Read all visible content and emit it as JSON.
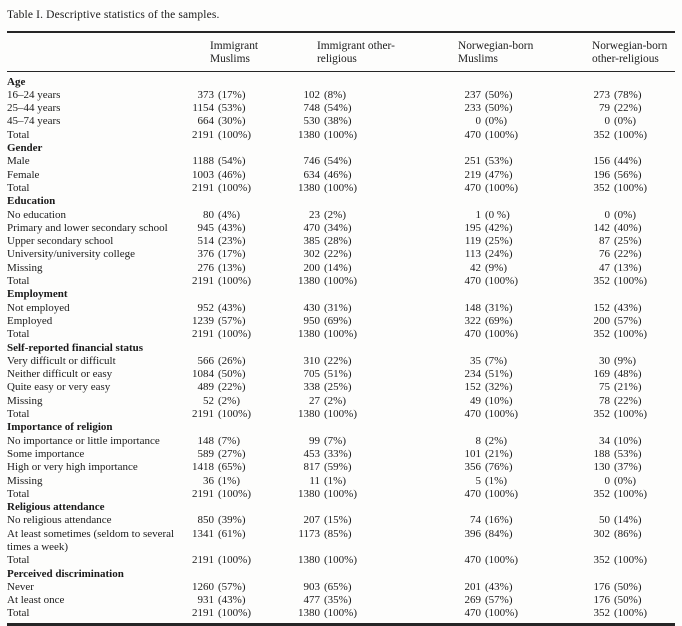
{
  "page": {
    "title": "Table I. Descriptive statistics of the samples."
  },
  "table": {
    "columns": [
      {
        "line1": "Immigrant",
        "line2": "Muslims"
      },
      {
        "line1": "Immigrant other-",
        "line2": "religious"
      },
      {
        "line1": "Norwegian-born",
        "line2": "Muslims"
      },
      {
        "line1": "Norwegian-born",
        "line2": "other-religious"
      }
    ],
    "sections": [
      {
        "header": "Age",
        "rows": [
          {
            "label": "16–24 years",
            "values": [
              "373 (17%)",
              "102 (8%)",
              "237 (50%)",
              "273 (78%)"
            ]
          },
          {
            "label": "25–44 years",
            "values": [
              "1154 (53%)",
              "748 (54%)",
              "233 (50%)",
              "79 (22%)"
            ]
          },
          {
            "label": "45–74 years",
            "values": [
              "664 (30%)",
              "530 (38%)",
              "0 (0%)",
              "0 (0%)"
            ]
          },
          {
            "label": "Total",
            "values": [
              "2191 (100%)",
              "1380 (100%)",
              "470 (100%)",
              "352 (100%)"
            ]
          }
        ]
      },
      {
        "header": "Gender",
        "rows": [
          {
            "label": "Male",
            "values": [
              "1188 (54%)",
              "746 (54%)",
              "251 (53%)",
              "156 (44%)"
            ]
          },
          {
            "label": "Female",
            "values": [
              "1003 (46%)",
              "634 (46%)",
              "219 (47%)",
              "196 (56%)"
            ]
          },
          {
            "label": "Total",
            "values": [
              "2191 (100%)",
              "1380 (100%)",
              "470 (100%)",
              "352 (100%)"
            ]
          }
        ]
      },
      {
        "header": "Education",
        "rows": [
          {
            "label": "No education",
            "values": [
              "80 (4%)",
              "23 (2%)",
              "1 (0 %)",
              "0 (0%)"
            ]
          },
          {
            "label": "Primary and lower secondary school",
            "values": [
              "945 (43%)",
              "470 (34%)",
              "195 (42%)",
              "142 (40%)"
            ]
          },
          {
            "label": "Upper secondary school",
            "values": [
              "514 (23%)",
              "385 (28%)",
              "119 (25%)",
              "87 (25%)"
            ]
          },
          {
            "label": "University/university college",
            "values": [
              "376 (17%)",
              "302 (22%)",
              "113 (24%)",
              "76 (22%)"
            ]
          },
          {
            "label": "Missing",
            "values": [
              "276 (13%)",
              "200 (14%)",
              "42 (9%)",
              "47 (13%)"
            ]
          },
          {
            "label": "Total",
            "values": [
              "2191 (100%)",
              "1380 (100%)",
              "470 (100%)",
              "352 (100%)"
            ]
          }
        ]
      },
      {
        "header": "Employment",
        "rows": [
          {
            "label": "Not employed",
            "values": [
              "952 (43%)",
              "430 (31%)",
              "148 (31%)",
              "152 (43%)"
            ]
          },
          {
            "label": "Employed",
            "values": [
              "1239 (57%)",
              "950 (69%)",
              "322 (69%)",
              "200 (57%)"
            ]
          },
          {
            "label": "Total",
            "values": [
              "2191 (100%)",
              "1380 (100%)",
              "470 (100%)",
              "352 (100%)"
            ]
          }
        ]
      },
      {
        "header": "Self-reported financial status",
        "rows": [
          {
            "label": "Very difficult or difficult",
            "values": [
              "566 (26%)",
              "310 (22%)",
              "35 (7%)",
              "30 (9%)"
            ]
          },
          {
            "label": "Neither difficult or easy",
            "values": [
              "1084 (50%)",
              "705 (51%)",
              "234 (51%)",
              "169 (48%)"
            ]
          },
          {
            "label": "Quite easy or very easy",
            "values": [
              "489 (22%)",
              "338 (25%)",
              "152 (32%)",
              "75 (21%)"
            ]
          },
          {
            "label": "Missing",
            "values": [
              "52 (2%)",
              "27 (2%)",
              "49 (10%)",
              "78 (22%)"
            ]
          },
          {
            "label": "Total",
            "values": [
              "2191 (100%)",
              "1380 (100%)",
              "470 (100%)",
              "352 (100%)"
            ]
          }
        ]
      },
      {
        "header": "Importance of religion",
        "rows": [
          {
            "label": "No importance or little importance",
            "values": [
              "148 (7%)",
              "99 (7%)",
              "8 (2%)",
              "34 (10%)"
            ]
          },
          {
            "label": "Some importance",
            "values": [
              "589 (27%)",
              "453 (33%)",
              "101 (21%)",
              "188 (53%)"
            ]
          },
          {
            "label": "High or very high importance",
            "values": [
              "1418 (65%)",
              "817 (59%)",
              "356 (76%)",
              "130 (37%)"
            ]
          },
          {
            "label": "Missing",
            "values": [
              "36 (1%)",
              "11 (1%)",
              "5 (1%)",
              "0 (0%)"
            ]
          },
          {
            "label": "Total",
            "values": [
              "2191 (100%)",
              "1380 (100%)",
              "470 (100%)",
              "352 (100%)"
            ]
          }
        ]
      },
      {
        "header": "Religious attendance",
        "rows": [
          {
            "label": "No religious attendance",
            "values": [
              "850 (39%)",
              "207 (15%)",
              "74 (16%)",
              "50 (14%)"
            ]
          },
          {
            "label": "At least sometimes (seldom to several times a week)",
            "values": [
              "1341 (61%)",
              "1173 (85%)",
              "396 (84%)",
              "302 (86%)"
            ]
          },
          {
            "label": "Total",
            "values": [
              "2191 (100%)",
              "1380 (100%)",
              "470 (100%)",
              "352 (100%)"
            ]
          }
        ]
      },
      {
        "header": "Perceived discrimination",
        "rows": [
          {
            "label": "Never",
            "values": [
              "1260 (57%)",
              "903 (65%)",
              "201 (43%)",
              "176 (50%)"
            ]
          },
          {
            "label": "At least once",
            "values": [
              "931 (43%)",
              "477 (35%)",
              "269 (57%)",
              "176 (50%)"
            ]
          },
          {
            "label": "Total",
            "values": [
              "2191 (100%)",
              "1380 (100%)",
              "470 (100%)",
              "352 (100%)"
            ]
          }
        ]
      }
    ]
  }
}
